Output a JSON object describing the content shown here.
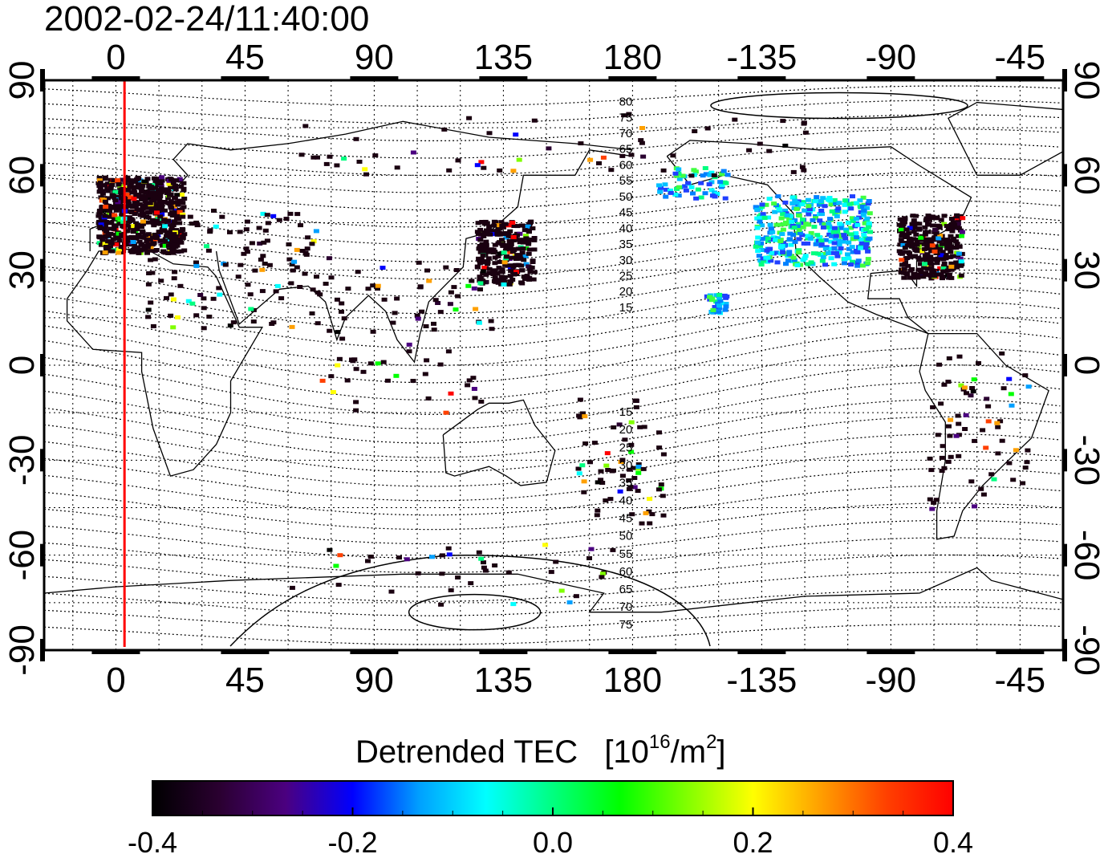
{
  "map": {
    "timestamp": "2002-02-24/11:40:00",
    "x_ticks": [
      "0",
      "45",
      "90",
      "135",
      "180",
      "-135",
      "-90",
      "-45"
    ],
    "y_ticks": [
      "90",
      "60",
      "30",
      "0",
      "-30",
      "-60",
      "-90"
    ],
    "x_tick_lons": [
      0,
      45,
      90,
      135,
      180,
      225,
      270,
      315
    ],
    "y_tick_lats": [
      90,
      60,
      30,
      0,
      -30,
      -60,
      -90
    ],
    "lon_range": [
      -25,
      330
    ],
    "lat_range": [
      -90,
      90
    ],
    "red_meridian_lon": 3,
    "north_contour_labels": [
      "80",
      "75",
      "70",
      "65",
      "60",
      "55",
      "50",
      "45",
      "40",
      "35",
      "30",
      "25",
      "20",
      "15"
    ],
    "south_contour_labels": [
      "15",
      "20",
      "25",
      "30",
      "35",
      "40",
      "45",
      "50",
      "55",
      "60",
      "65",
      "70",
      "75"
    ],
    "colors": {
      "meridian": "#ff0000",
      "frame": "#000000",
      "grid": "#000000"
    }
  },
  "colorbar": {
    "title": "Detrended TEC",
    "unit_base": "[10",
    "unit_exp": "16",
    "unit_mid": "/m",
    "unit_exp2": "2",
    "unit_close": "]",
    "tick_labels": [
      "-0.4",
      "-0.2",
      "0.0",
      "0.2",
      "0.4"
    ],
    "tick_values": [
      -0.4,
      -0.2,
      0.0,
      0.2,
      0.4
    ],
    "range": [
      -0.4,
      0.4
    ],
    "stops": [
      "#000000",
      "#2a0030",
      "#4b0080",
      "#0000ff",
      "#00a0ff",
      "#00ffff",
      "#00ff80",
      "#00ff00",
      "#80ff00",
      "#ffff00",
      "#ffa000",
      "#ff4000",
      "#ff0000"
    ]
  }
}
